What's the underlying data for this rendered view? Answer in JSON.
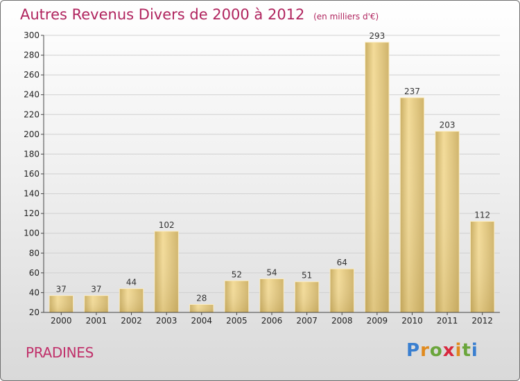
{
  "header": {
    "title": "Autres Revenus Divers de 2000 à 2012",
    "unit": "(en milliers d'€)"
  },
  "footer": {
    "city": "PRADINES",
    "logo": "Proxiti"
  },
  "colors": {
    "title": "#b0245e",
    "bar_light": "#f5dd9b",
    "bar_dark": "#c6a95c",
    "grid": "#d0d0d0"
  },
  "chart_data": {
    "type": "bar",
    "title": "Autres Revenus Divers de 2000 à 2012",
    "subtitle": "(en milliers d'€)",
    "categories": [
      "2000",
      "2001",
      "2002",
      "2003",
      "2004",
      "2005",
      "2006",
      "2007",
      "2008",
      "2009",
      "2010",
      "2011",
      "2012"
    ],
    "values": [
      37,
      37,
      44,
      102,
      28,
      52,
      54,
      51,
      64,
      293,
      237,
      203,
      112
    ],
    "ylim": [
      20,
      300
    ],
    "yticks": [
      20,
      40,
      60,
      80,
      100,
      120,
      140,
      160,
      180,
      200,
      220,
      240,
      260,
      280,
      300
    ],
    "grid": true,
    "legend": "none"
  }
}
